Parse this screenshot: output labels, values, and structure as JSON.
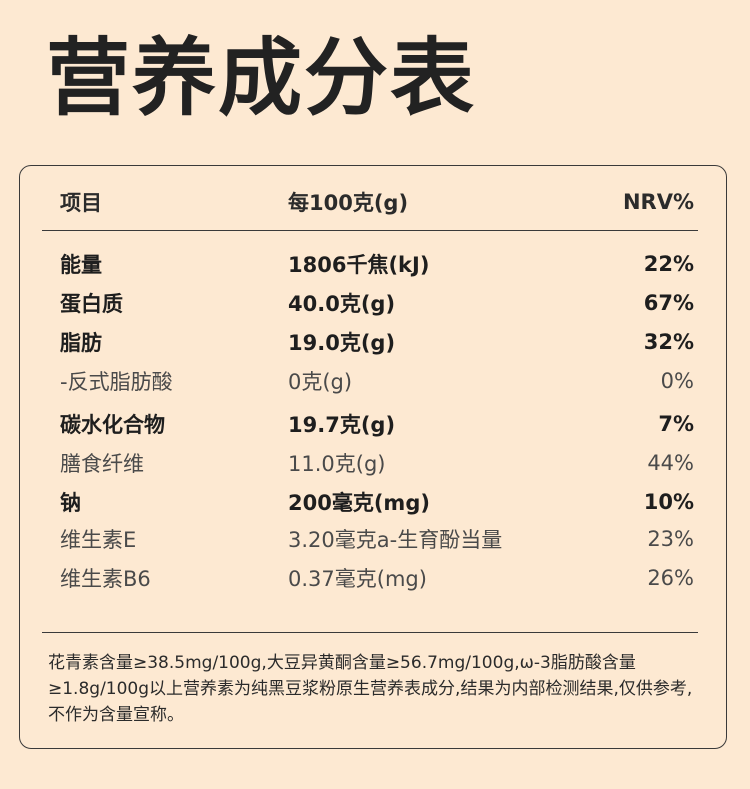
{
  "title": "营养成分表",
  "table": {
    "headers": [
      "项目",
      "每100克(g)",
      "NRV%"
    ],
    "rows": [
      {
        "item": "能量",
        "value": "1806千焦(kJ)",
        "nrv": "22%",
        "bold": true
      },
      {
        "item": "蛋白质",
        "value": "40.0克(g)",
        "nrv": "67%",
        "bold": true
      },
      {
        "item": "脂肪",
        "value": "19.0克(g)",
        "nrv": "32%",
        "bold": true
      },
      {
        "item": "-反式脂肪酸",
        "value": "0克(g)",
        "nrv": "0%",
        "bold": false
      },
      {
        "item": "碳水化合物",
        "value": "19.7克(g)",
        "nrv": "7%",
        "bold": true
      },
      {
        "item": "膳食纤维",
        "value": "11.0克(g)",
        "nrv": "44%",
        "bold": false
      },
      {
        "item": "钠",
        "value": "200毫克(mg)",
        "nrv": "10%",
        "bold": true
      },
      {
        "item": "维生素E",
        "value": "3.20毫克a-生育酚当量",
        "nrv": "23%",
        "bold": false
      },
      {
        "item": "维生素B6",
        "value": "0.37毫克(mg)",
        "nrv": "26%",
        "bold": false
      }
    ]
  },
  "note": "花青素含量≥38.5mg/100g,大豆异黄酮含量≥56.7mg/100g,ω-3脂肪酸含量≥1.8g/100g以上营养素为纯黑豆浆粉原生营养表成分,结果为内部检测结果,仅供参考,不作为含量宣称。"
}
